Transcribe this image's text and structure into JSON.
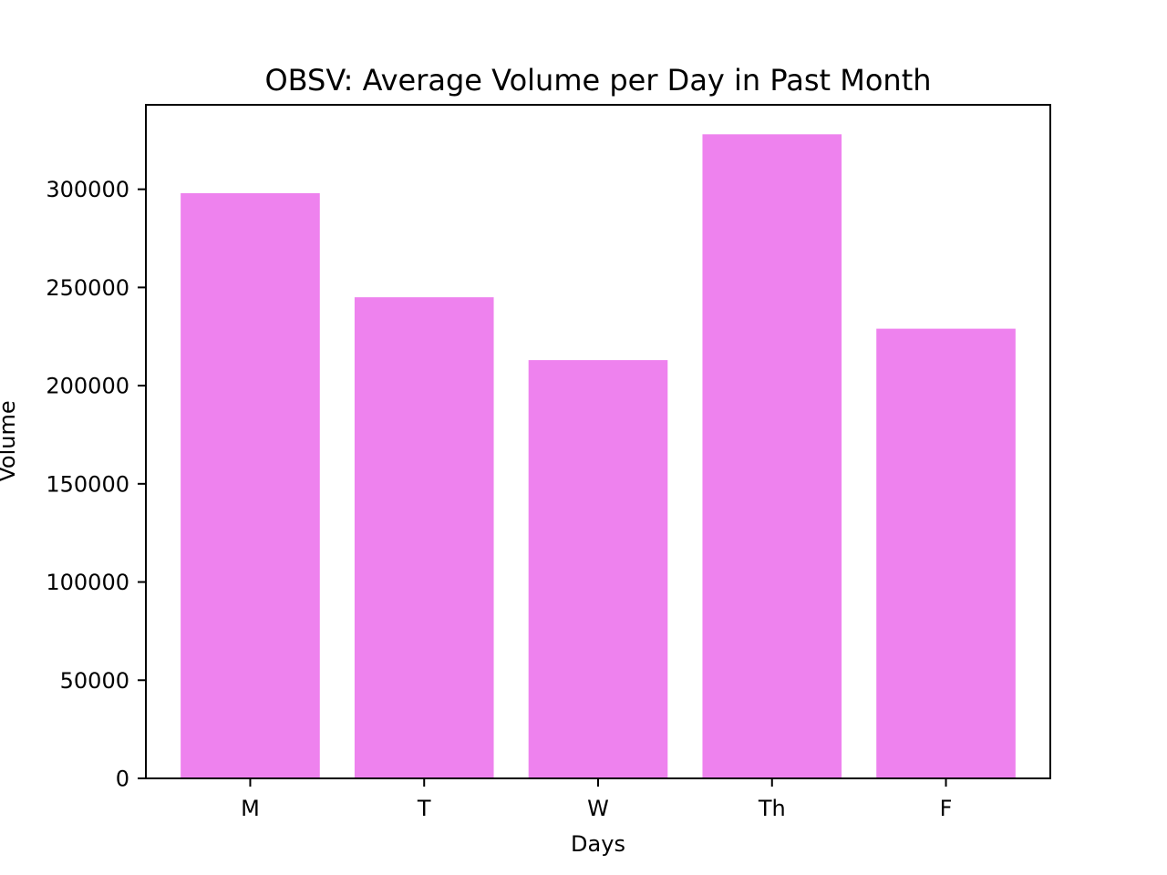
{
  "chart_data": {
    "type": "bar",
    "title": "OBSV: Average Volume per Day in Past Month",
    "xlabel": "Days",
    "ylabel": "Volume",
    "categories": [
      "M",
      "T",
      "W",
      "Th",
      "F"
    ],
    "values": [
      298000,
      245000,
      213000,
      328000,
      229000
    ],
    "ylim": [
      0,
      343000
    ],
    "yticks": [
      0,
      50000,
      100000,
      150000,
      200000,
      250000,
      300000
    ],
    "ytick_labels": [
      "0",
      "50000",
      "100000",
      "150000",
      "200000",
      "250000",
      "300000"
    ],
    "bar_color": "#ee82ee",
    "grid": false,
    "legend": "none"
  }
}
